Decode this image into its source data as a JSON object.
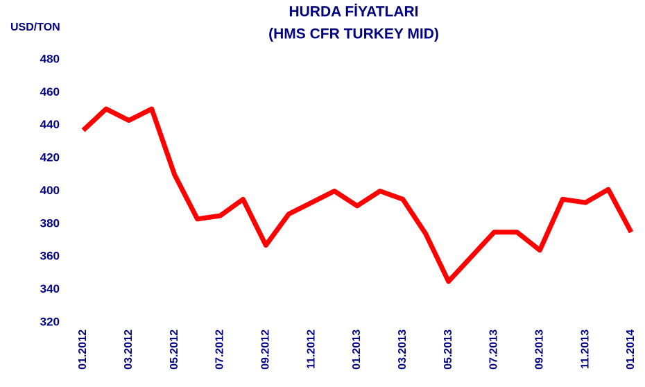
{
  "chart_data": {
    "type": "line",
    "title": "HURDA FİYATLARI",
    "subtitle": "(HMS CFR TURKEY MID)",
    "y_label": "USD/TON",
    "categories": [
      "01.2012",
      null,
      "03.2012",
      null,
      "05.2012",
      null,
      "07.2012",
      null,
      "09.2012",
      null,
      "11.2012",
      null,
      "01.2013",
      null,
      "03.2013",
      null,
      "05.2013",
      null,
      "07.2013",
      null,
      "09.2013",
      null,
      "11.2013",
      null,
      "01.2014"
    ],
    "series": [
      {
        "name": "HMS CFR TURKEY MID",
        "color": "#ff0000",
        "values": [
          437,
          450,
          443,
          450,
          410,
          383,
          385,
          395,
          367,
          386,
          393,
          400,
          391,
          400,
          395,
          374,
          345,
          360,
          375,
          375,
          364,
          395,
          393,
          401,
          375
        ]
      }
    ],
    "ylim": [
      320,
      480
    ],
    "yticks": [
      320,
      340,
      360,
      380,
      400,
      420,
      440,
      460,
      480
    ],
    "grid": false,
    "text_color": "#000080"
  }
}
